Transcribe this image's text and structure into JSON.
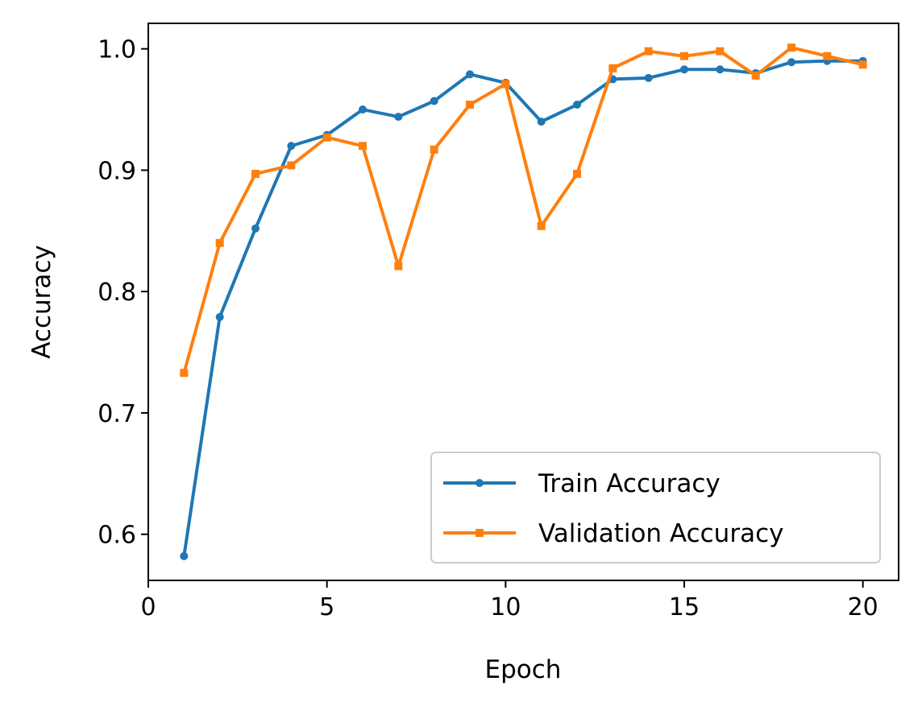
{
  "chart_data": {
    "type": "line",
    "title": "",
    "xlabel": "Epoch",
    "ylabel": "Accuracy",
    "xlim": [
      0,
      21
    ],
    "ylim": [
      0.562,
      1.021
    ],
    "xticks": [
      0,
      5,
      10,
      15,
      20
    ],
    "yticks": [
      0.6,
      0.7,
      0.8,
      0.9,
      1.0
    ],
    "xtick_labels": [
      "0",
      "5",
      "10",
      "15",
      "20"
    ],
    "ytick_labels": [
      "0.6",
      "0.7",
      "0.8",
      "0.9",
      "1.0"
    ],
    "grid": false,
    "legend_position": "lower-right",
    "x": [
      1,
      2,
      3,
      4,
      5,
      6,
      7,
      8,
      9,
      10,
      11,
      12,
      13,
      14,
      15,
      16,
      17,
      18,
      19,
      20
    ],
    "series": [
      {
        "name": "Train Accuracy",
        "color": "#1f77b4",
        "marker": "circle",
        "values": [
          0.582,
          0.779,
          0.852,
          0.92,
          0.929,
          0.95,
          0.944,
          0.957,
          0.979,
          0.972,
          0.94,
          0.954,
          0.975,
          0.976,
          0.983,
          0.983,
          0.98,
          0.989,
          0.99,
          0.99
        ]
      },
      {
        "name": "Validation Accuracy",
        "color": "#ff7f0e",
        "marker": "square",
        "values": [
          0.733,
          0.84,
          0.897,
          0.904,
          0.927,
          0.92,
          0.821,
          0.917,
          0.954,
          0.971,
          0.854,
          0.897,
          0.984,
          0.998,
          0.994,
          0.998,
          0.978,
          1.001,
          0.994,
          0.987
        ]
      }
    ]
  }
}
